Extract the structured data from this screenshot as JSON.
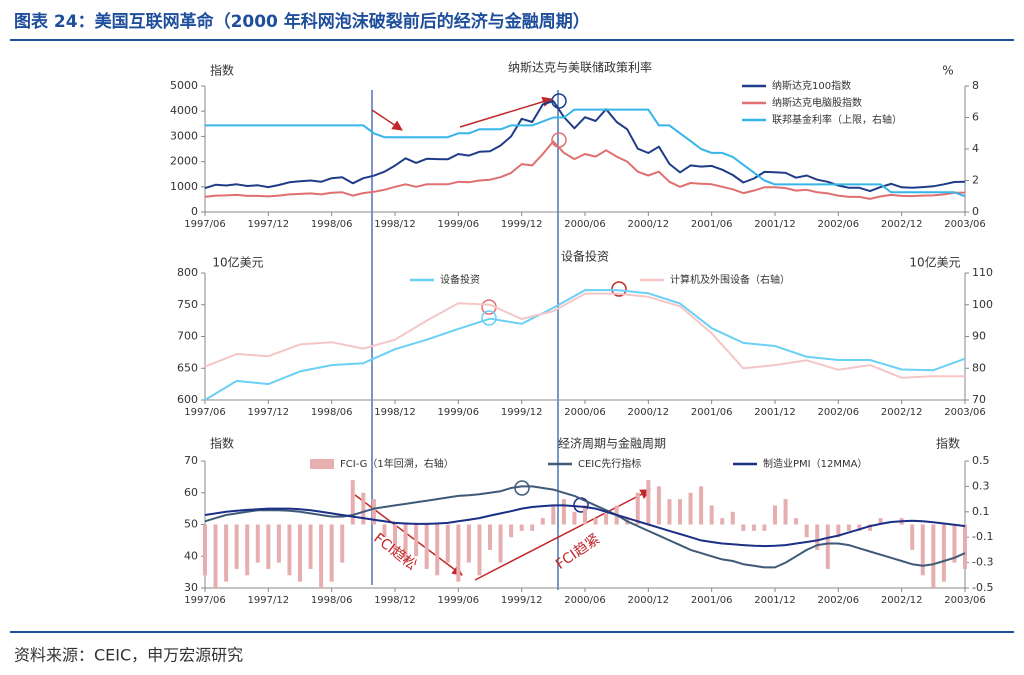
{
  "title": "图表 24：美国互联网革命（2000 年科网泡沫破裂前后的经济与金融周期）",
  "source": "资料来源：CEIC，申万宏源研究",
  "chart_data": [
    {
      "type": "line",
      "title": "纳斯达克与美联储政策利率",
      "ylabel": "指数",
      "y2label": "%",
      "x": [
        "1997/06",
        "1997/07",
        "1997/08",
        "1997/09",
        "1997/10",
        "1997/11",
        "1997/12",
        "1998/01",
        "1998/02",
        "1998/03",
        "1998/04",
        "1998/05",
        "1998/06",
        "1998/07",
        "1998/08",
        "1998/09",
        "1998/10",
        "1998/11",
        "1998/12",
        "1999/01",
        "1999/02",
        "1999/03",
        "1999/04",
        "1999/05",
        "1999/06",
        "1999/07",
        "1999/08",
        "1999/09",
        "1999/10",
        "1999/11",
        "1999/12",
        "2000/01",
        "2000/02",
        "2000/03",
        "2000/04",
        "2000/05",
        "2000/06",
        "2000/07",
        "2000/08",
        "2000/09",
        "2000/10",
        "2000/11",
        "2000/12",
        "2001/01",
        "2001/02",
        "2001/03",
        "2001/04",
        "2001/05",
        "2001/06",
        "2001/07",
        "2001/08",
        "2001/09",
        "2001/10",
        "2001/11",
        "2001/12",
        "2002/01",
        "2002/02",
        "2002/03",
        "2002/04",
        "2002/05",
        "2002/06",
        "2002/07",
        "2002/08",
        "2002/09",
        "2002/10",
        "2002/11",
        "2002/12",
        "2003/01",
        "2003/02",
        "2003/03",
        "2003/04",
        "2003/05",
        "2003/06"
      ],
      "xticks": [
        "1997/06",
        "1997/12",
        "1998/06",
        "1998/12",
        "1999/06",
        "1999/12",
        "2000/06",
        "2000/12",
        "2001/06",
        "2001/12",
        "2002/06",
        "2002/12",
        "2003/06"
      ],
      "ylim": [
        0,
        5000
      ],
      "yticks": [
        0,
        1000,
        2000,
        3000,
        4000,
        5000
      ],
      "y2lim": [
        0,
        8
      ],
      "y2ticks": [
        0,
        2,
        4,
        6,
        8
      ],
      "series": [
        {
          "name": "纳斯达克100指数",
          "color": "#1f3c88",
          "values": [
            950,
            1080,
            1050,
            1100,
            1030,
            1060,
            990,
            1070,
            1180,
            1220,
            1250,
            1200,
            1340,
            1380,
            1140,
            1340,
            1440,
            1600,
            1840,
            2130,
            1950,
            2110,
            2100,
            2090,
            2300,
            2240,
            2390,
            2410,
            2640,
            3000,
            3700,
            3570,
            4270,
            4400,
            3770,
            3320,
            3760,
            3610,
            4080,
            3570,
            3280,
            2510,
            2340,
            2590,
            1910,
            1570,
            1850,
            1800,
            1830,
            1680,
            1470,
            1170,
            1330,
            1590,
            1580,
            1550,
            1360,
            1450,
            1280,
            1200,
            1050,
            960,
            960,
            830,
            990,
            1120,
            980,
            960,
            990,
            1020,
            1100,
            1190,
            1200
          ]
        },
        {
          "name": "纳斯达克电脑股指数",
          "color": "#e07070",
          "values": [
            600,
            650,
            660,
            680,
            640,
            640,
            620,
            650,
            700,
            720,
            740,
            700,
            760,
            780,
            650,
            750,
            800,
            880,
            1000,
            1100,
            1000,
            1100,
            1100,
            1100,
            1200,
            1180,
            1250,
            1280,
            1380,
            1550,
            1900,
            1850,
            2300,
            2800,
            2350,
            2100,
            2300,
            2200,
            2450,
            2200,
            2000,
            1600,
            1450,
            1600,
            1200,
            1000,
            1150,
            1120,
            1100,
            1000,
            900,
            750,
            850,
            980,
            980,
            950,
            850,
            880,
            780,
            740,
            650,
            600,
            600,
            520,
            620,
            680,
            640,
            630,
            650,
            660,
            700,
            760,
            770
          ]
        },
        {
          "name": "联邦基金利率（上限，右轴）",
          "color": "#35b5e8",
          "axis": "y2",
          "values": [
            5.5,
            5.5,
            5.5,
            5.5,
            5.5,
            5.5,
            5.5,
            5.5,
            5.5,
            5.5,
            5.5,
            5.5,
            5.5,
            5.5,
            5.5,
            5.5,
            5.0,
            4.75,
            4.75,
            4.75,
            4.75,
            4.75,
            4.75,
            4.75,
            5.0,
            5.0,
            5.25,
            5.25,
            5.25,
            5.5,
            5.5,
            5.5,
            5.75,
            6.0,
            6.0,
            6.5,
            6.5,
            6.5,
            6.5,
            6.5,
            6.5,
            6.5,
            6.5,
            5.5,
            5.5,
            5.0,
            4.5,
            4.0,
            3.75,
            3.75,
            3.5,
            3.0,
            2.5,
            2.0,
            1.75,
            1.75,
            1.75,
            1.75,
            1.75,
            1.75,
            1.75,
            1.75,
            1.75,
            1.75,
            1.75,
            1.25,
            1.25,
            1.25,
            1.25,
            1.25,
            1.25,
            1.25,
            1.0
          ]
        }
      ]
    },
    {
      "type": "line",
      "title": "设备投资",
      "ylabel": "10亿美元",
      "y2label": "10亿美元",
      "x": [
        "1997/06",
        "1997/09",
        "1997/12",
        "1998/03",
        "1998/06",
        "1998/09",
        "1998/12",
        "1999/03",
        "1999/06",
        "1999/09",
        "1999/12",
        "2000/03",
        "2000/06",
        "2000/09",
        "2000/12",
        "2001/03",
        "2001/06",
        "2001/09",
        "2001/12",
        "2002/03",
        "2002/06",
        "2002/09",
        "2002/12",
        "2003/03",
        "2003/06"
      ],
      "xticks": [
        "1997/06",
        "1997/12",
        "1998/06",
        "1998/12",
        "1999/06",
        "1999/12",
        "2000/06",
        "2000/12",
        "2001/06",
        "2001/12",
        "2002/06",
        "2002/12",
        "2003/06"
      ],
      "ylim": [
        600,
        800
      ],
      "yticks": [
        600,
        650,
        700,
        750,
        800
      ],
      "y2lim": [
        70,
        110
      ],
      "y2ticks": [
        70,
        80,
        90,
        100,
        110
      ],
      "series": [
        {
          "name": "设备投资",
          "color": "#6ad0f5",
          "values": [
            600,
            630,
            625,
            645,
            655,
            658,
            680,
            695,
            712,
            728,
            720,
            745,
            773,
            773,
            768,
            752,
            713,
            690,
            685,
            668,
            663,
            663,
            648,
            647,
            665
          ]
        },
        {
          "name": "计算机及外围设备（右轴）",
          "color": "#f5c6c6",
          "axis": "y2",
          "values": [
            80.5,
            84.5,
            83.8,
            87.5,
            88.2,
            86.2,
            89,
            95,
            100.5,
            100,
            95.5,
            98,
            103.5,
            103.5,
            102.5,
            99.5,
            91,
            80,
            81,
            82.5,
            79.5,
            81,
            77,
            77.5,
            77.5
          ]
        }
      ]
    },
    {
      "type": "bar-line",
      "title": "经济周期与金融周期",
      "ylabel": "指数",
      "y2label": "指数",
      "annotations": [
        "FCI趋松",
        "FCI趋紧"
      ],
      "x": [
        "1997/06",
        "1997/07",
        "1997/08",
        "1997/09",
        "1997/10",
        "1997/11",
        "1997/12",
        "1998/01",
        "1998/02",
        "1998/03",
        "1998/04",
        "1998/05",
        "1998/06",
        "1998/07",
        "1998/08",
        "1998/09",
        "1998/10",
        "1998/11",
        "1998/12",
        "1999/01",
        "1999/02",
        "1999/03",
        "1999/04",
        "1999/05",
        "1999/06",
        "1999/07",
        "1999/08",
        "1999/09",
        "1999/10",
        "1999/11",
        "1999/12",
        "2000/01",
        "2000/02",
        "2000/03",
        "2000/04",
        "2000/05",
        "2000/06",
        "2000/07",
        "2000/08",
        "2000/09",
        "2000/10",
        "2000/11",
        "2000/12",
        "2001/01",
        "2001/02",
        "2001/03",
        "2001/04",
        "2001/05",
        "2001/06",
        "2001/07",
        "2001/08",
        "2001/09",
        "2001/10",
        "2001/11",
        "2001/12",
        "2002/01",
        "2002/02",
        "2002/03",
        "2002/04",
        "2002/05",
        "2002/06",
        "2002/07",
        "2002/08",
        "2002/09",
        "2002/10",
        "2002/11",
        "2002/12",
        "2003/01",
        "2003/02",
        "2003/03",
        "2003/04",
        "2003/05",
        "2003/06"
      ],
      "xticks": [
        "1997/06",
        "1997/12",
        "1998/06",
        "1998/12",
        "1999/06",
        "1999/12",
        "2000/06",
        "2000/12",
        "2001/06",
        "2001/12",
        "2002/06",
        "2002/12",
        "2003/06"
      ],
      "ylim": [
        30,
        70
      ],
      "yticks": [
        30,
        40,
        50,
        60,
        70
      ],
      "y2lim": [
        -0.5,
        0.5
      ],
      "y2ticks": [
        -0.5,
        -0.3,
        -0.1,
        0.1,
        0.3,
        0.5
      ],
      "series": [
        {
          "name": "FCI-G（1年回溯，右轴）",
          "type": "bar",
          "color": "#e6aeae",
          "axis": "y2",
          "values": [
            -0.4,
            -0.5,
            -0.45,
            -0.35,
            -0.4,
            -0.3,
            -0.35,
            -0.3,
            -0.4,
            -0.45,
            -0.35,
            -0.5,
            -0.45,
            -0.3,
            0.35,
            0.25,
            0.2,
            -0.1,
            -0.2,
            -0.3,
            -0.25,
            -0.35,
            -0.4,
            -0.3,
            -0.45,
            -0.3,
            -0.4,
            -0.2,
            -0.3,
            -0.1,
            -0.05,
            -0.05,
            0.05,
            0.15,
            0.2,
            0.1,
            0.15,
            0.05,
            0.1,
            0.15,
            0.05,
            0.25,
            0.35,
            0.3,
            0.2,
            0.2,
            0.25,
            0.3,
            0.15,
            0.05,
            0.1,
            -0.05,
            -0.05,
            -0.05,
            0.15,
            0.2,
            0.05,
            -0.1,
            -0.2,
            -0.35,
            -0.1,
            -0.05,
            -0.05,
            -0.05,
            0.05,
            0.0,
            0.05,
            -0.2,
            -0.4,
            -0.5,
            -0.45,
            -0.3,
            -0.35
          ]
        },
        {
          "name": "CEIC先行指标",
          "color": "#3f5a78",
          "values": [
            51,
            52,
            53,
            53.5,
            54,
            54.5,
            54.5,
            54.5,
            54.3,
            54,
            53.5,
            53,
            52.5,
            52.5,
            53,
            54,
            55,
            55.5,
            56,
            56.5,
            57,
            57.5,
            58,
            58.5,
            59,
            59.2,
            59.5,
            60,
            60.5,
            61.5,
            62,
            62,
            61.5,
            61,
            60,
            59,
            57.5,
            56,
            54.5,
            53,
            51,
            49.5,
            48,
            46.5,
            45,
            43.5,
            42,
            41,
            40,
            39,
            38.5,
            37.5,
            37,
            36.5,
            36.5,
            38,
            40,
            42,
            43.5,
            44,
            44,
            43.5,
            42.5,
            41.5,
            40.5,
            39.5,
            38.5,
            37.5,
            37,
            37.5,
            38.5,
            39.5,
            41
          ]
        },
        {
          "name": "制造业PMI（12MMA）",
          "color": "#1a2f86",
          "values": [
            53,
            53.5,
            54,
            54.3,
            54.6,
            54.8,
            55,
            55,
            55,
            54.8,
            54.5,
            54,
            53.5,
            53,
            52.5,
            52,
            51.5,
            51,
            50.5,
            50.3,
            50.2,
            50.2,
            50.3,
            50.5,
            51,
            51.5,
            52,
            52.8,
            53.5,
            54.2,
            55,
            55.5,
            55.8,
            56,
            56,
            55.8,
            55.5,
            55,
            54,
            53,
            52,
            51,
            50,
            49,
            48,
            47,
            46,
            45,
            44.5,
            44,
            43.8,
            43.5,
            43.3,
            43.2,
            43.3,
            43.5,
            44,
            44.5,
            45,
            45.8,
            46.5,
            47.5,
            48.5,
            49.5,
            50.2,
            50.8,
            51,
            51.2,
            51,
            50.7,
            50.3,
            49.9,
            49.5
          ]
        }
      ]
    }
  ]
}
